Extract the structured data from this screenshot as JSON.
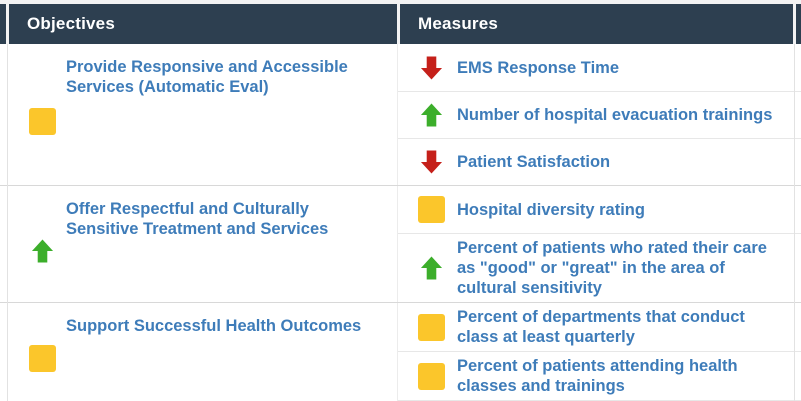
{
  "header": {
    "objectives_label": "Objectives",
    "measures_label": "Measures"
  },
  "colors": {
    "header_bg": "#2d3f50",
    "header_text": "#ffffff",
    "link_blue": "#3e7cb9",
    "status_yellow": "#fbc62b",
    "status_green": "#3cae2b",
    "status_red": "#c5201a"
  },
  "icons": {
    "yellow-square": "status-yellow-square-icon",
    "green-arrow-up": "trend-up-arrow-icon",
    "red-arrow-down": "trend-down-arrow-icon"
  },
  "groups": [
    {
      "objective": {
        "icon": "yellow-square",
        "text": "Provide Responsive and Accessible Services (Automatic Eval)"
      },
      "measures": [
        {
          "icon": "red-arrow-down",
          "text": "EMS Response Time"
        },
        {
          "icon": "green-arrow-up",
          "text": "Number of hospital evacuation trainings"
        },
        {
          "icon": "red-arrow-down",
          "text": "Patient Satisfaction"
        }
      ]
    },
    {
      "objective": {
        "icon": "green-arrow-up",
        "text": "Offer Respectful and Culturally Sensitive Treatment and Services"
      },
      "measures": [
        {
          "icon": "yellow-square",
          "text": "Hospital diversity rating"
        },
        {
          "icon": "green-arrow-up",
          "text": "Percent of patients who rated their care as \"good\" or \"great\" in the area of cultural sensitivity"
        }
      ]
    },
    {
      "objective": {
        "icon": "yellow-square",
        "text": "Support Successful Health Outcomes"
      },
      "measures": [
        {
          "icon": "yellow-square",
          "text": "Percent of departments that conduct class at least quarterly"
        },
        {
          "icon": "yellow-square",
          "text": "Percent of patients attending health classes and trainings"
        }
      ]
    }
  ]
}
